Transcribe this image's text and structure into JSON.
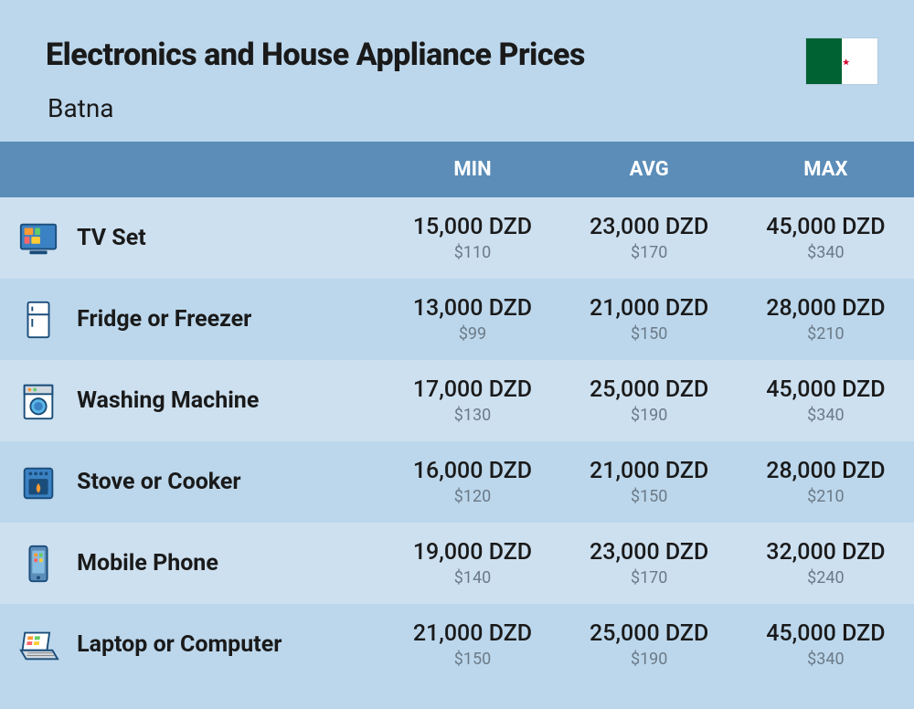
{
  "title": "Electronics and House Appliance Prices",
  "subtitle": "Batna",
  "flag": {
    "left_color": "#006233",
    "right_color": "#ffffff",
    "emblem_color": "#d21034"
  },
  "columns": {
    "min": "MIN",
    "avg": "AVG",
    "max": "MAX"
  },
  "colors": {
    "page_bg": "#bcd7ec",
    "row_odd": "#cde0f0",
    "row_even": "#bcd7ec",
    "header_bg": "#5b8db8",
    "header_text": "#ffffff",
    "primary_text": "#1a1a1a",
    "secondary_text": "#6b7a87"
  },
  "rows": [
    {
      "icon": "tv",
      "label": "TV Set",
      "min_dzd": "15,000 DZD",
      "min_usd": "$110",
      "avg_dzd": "23,000 DZD",
      "avg_usd": "$170",
      "max_dzd": "45,000 DZD",
      "max_usd": "$340"
    },
    {
      "icon": "fridge",
      "label": "Fridge or Freezer",
      "min_dzd": "13,000 DZD",
      "min_usd": "$99",
      "avg_dzd": "21,000 DZD",
      "avg_usd": "$150",
      "max_dzd": "28,000 DZD",
      "max_usd": "$210"
    },
    {
      "icon": "washer",
      "label": "Washing Machine",
      "min_dzd": "17,000 DZD",
      "min_usd": "$130",
      "avg_dzd": "25,000 DZD",
      "avg_usd": "$190",
      "max_dzd": "45,000 DZD",
      "max_usd": "$340"
    },
    {
      "icon": "stove",
      "label": "Stove or Cooker",
      "min_dzd": "16,000 DZD",
      "min_usd": "$120",
      "avg_dzd": "21,000 DZD",
      "avg_usd": "$150",
      "max_dzd": "28,000 DZD",
      "max_usd": "$210"
    },
    {
      "icon": "phone",
      "label": "Mobile Phone",
      "min_dzd": "19,000 DZD",
      "min_usd": "$140",
      "avg_dzd": "23,000 DZD",
      "avg_usd": "$170",
      "max_dzd": "32,000 DZD",
      "max_usd": "$240"
    },
    {
      "icon": "laptop",
      "label": "Laptop or Computer",
      "min_dzd": "21,000 DZD",
      "min_usd": "$150",
      "avg_dzd": "25,000 DZD",
      "avg_usd": "$190",
      "max_dzd": "45,000 DZD",
      "max_usd": "$340"
    }
  ]
}
